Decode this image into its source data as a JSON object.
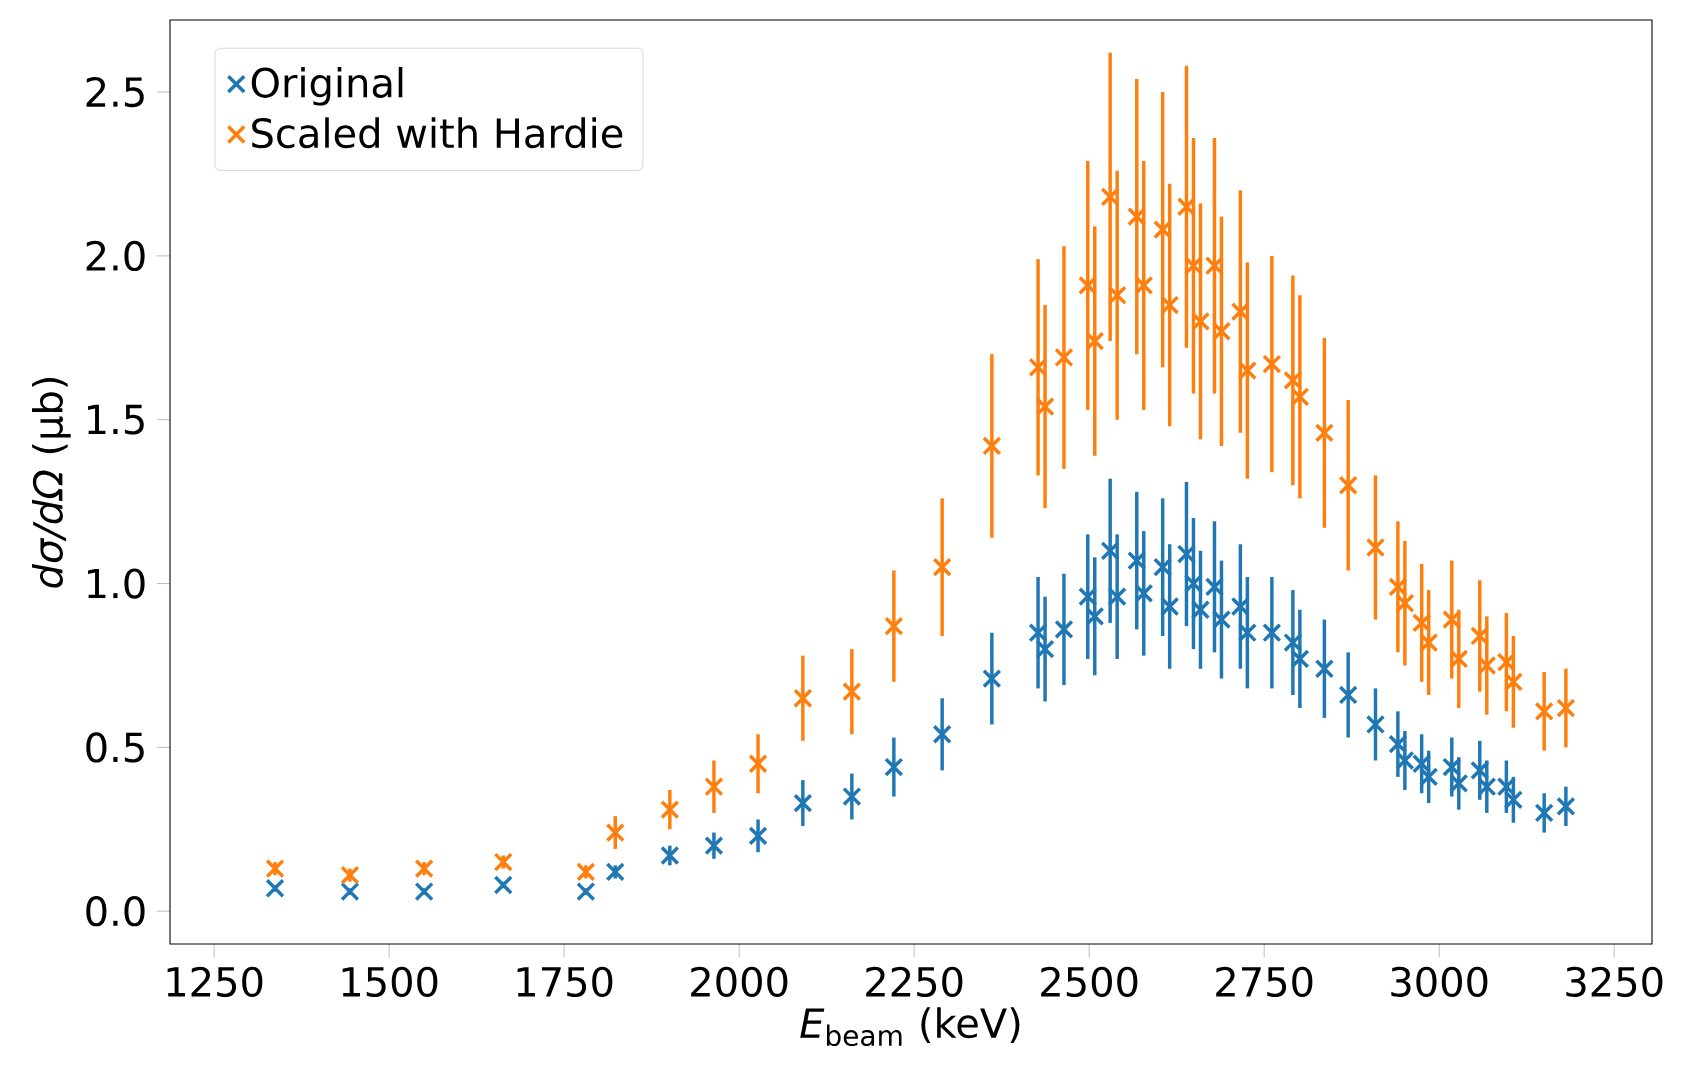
{
  "chart_data": {
    "type": "scatter",
    "xlabel": "*E*$_{beam}$ (keV)",
    "ylabel": "*dσ/dΩ* (μb)",
    "xlim": [
      1187,
      3304
    ],
    "ylim": [
      -0.1,
      2.72
    ],
    "xticks": [
      1250,
      1500,
      1750,
      2000,
      2250,
      2500,
      2750,
      3000,
      3250
    ],
    "yticks": [
      {
        "value": 0,
        "label": "0.0"
      },
      {
        "value": 0.5,
        "label": "0.5"
      },
      {
        "value": 1,
        "label": "1.0"
      },
      {
        "value": 1.5,
        "label": "1.5"
      },
      {
        "value": 2,
        "label": "2.0"
      },
      {
        "value": 2.5,
        "label": "2.5"
      }
    ],
    "marker": "cross",
    "legend": "top left",
    "series": [
      {
        "name": "Original",
        "color": "#1f77b4",
        "x": [
          1337,
          1444,
          1550,
          1663,
          1781,
          1823,
          1901,
          1964,
          2027,
          2091,
          2161,
          2221,
          2290,
          2361,
          2427,
          2437,
          2464,
          2498,
          2508,
          2530,
          2540,
          2568,
          2578,
          2605,
          2615,
          2639,
          2649,
          2659,
          2679,
          2689,
          2716,
          2726,
          2761,
          2791,
          2801,
          2836,
          2870,
          2909,
          2941,
          2951,
          2975,
          2985,
          3018,
          3028,
          3058,
          3068,
          3096,
          3106,
          3150,
          3181
        ],
        "values": [
          0.07,
          0.06,
          0.06,
          0.08,
          0.06,
          0.12,
          0.17,
          0.2,
          0.23,
          0.33,
          0.35,
          0.44,
          0.54,
          0.71,
          0.85,
          0.8,
          0.86,
          0.96,
          0.9,
          1.1,
          0.96,
          1.07,
          0.97,
          1.05,
          0.93,
          1.09,
          1.0,
          0.92,
          0.99,
          0.89,
          0.93,
          0.85,
          0.85,
          0.82,
          0.77,
          0.74,
          0.66,
          0.57,
          0.51,
          0.46,
          0.45,
          0.41,
          0.44,
          0.39,
          0.43,
          0.38,
          0.38,
          0.34,
          0.3,
          0.32
        ],
        "errors": [
          0.01,
          0.01,
          0.01,
          0.01,
          0.01,
          0.02,
          0.03,
          0.04,
          0.05,
          0.07,
          0.07,
          0.09,
          0.11,
          0.14,
          0.17,
          0.16,
          0.17,
          0.19,
          0.18,
          0.22,
          0.19,
          0.21,
          0.19,
          0.21,
          0.19,
          0.22,
          0.2,
          0.18,
          0.2,
          0.18,
          0.19,
          0.17,
          0.17,
          0.16,
          0.15,
          0.15,
          0.13,
          0.11,
          0.1,
          0.09,
          0.09,
          0.08,
          0.09,
          0.08,
          0.09,
          0.08,
          0.08,
          0.07,
          0.06,
          0.06
        ]
      },
      {
        "name": "Scaled with Hardie",
        "color": "#ff7f0e",
        "x": [
          1337,
          1444,
          1550,
          1663,
          1781,
          1823,
          1901,
          1964,
          2027,
          2091,
          2161,
          2221,
          2290,
          2361,
          2427,
          2437,
          2464,
          2498,
          2508,
          2530,
          2540,
          2568,
          2578,
          2605,
          2615,
          2639,
          2649,
          2659,
          2679,
          2689,
          2716,
          2726,
          2761,
          2791,
          2801,
          2836,
          2870,
          2909,
          2941,
          2951,
          2975,
          2985,
          3018,
          3028,
          3058,
          3068,
          3096,
          3106,
          3150,
          3181
        ],
        "values": [
          0.13,
          0.11,
          0.13,
          0.15,
          0.12,
          0.24,
          0.31,
          0.38,
          0.45,
          0.65,
          0.67,
          0.87,
          1.05,
          1.42,
          1.66,
          1.54,
          1.69,
          1.91,
          1.74,
          2.18,
          1.88,
          2.12,
          1.91,
          2.08,
          1.85,
          2.15,
          1.97,
          1.8,
          1.97,
          1.77,
          1.83,
          1.65,
          1.67,
          1.62,
          1.57,
          1.46,
          1.3,
          1.11,
          0.99,
          0.94,
          0.88,
          0.82,
          0.89,
          0.77,
          0.84,
          0.75,
          0.76,
          0.7,
          0.61,
          0.62
        ],
        "errors": [
          0.02,
          0.02,
          0.02,
          0.02,
          0.02,
          0.05,
          0.06,
          0.08,
          0.09,
          0.13,
          0.13,
          0.17,
          0.21,
          0.28,
          0.33,
          0.31,
          0.34,
          0.38,
          0.35,
          0.44,
          0.38,
          0.42,
          0.38,
          0.42,
          0.37,
          0.43,
          0.39,
          0.36,
          0.39,
          0.35,
          0.37,
          0.33,
          0.33,
          0.32,
          0.31,
          0.29,
          0.26,
          0.22,
          0.2,
          0.19,
          0.18,
          0.16,
          0.18,
          0.15,
          0.17,
          0.15,
          0.15,
          0.14,
          0.12,
          0.12
        ]
      }
    ]
  }
}
